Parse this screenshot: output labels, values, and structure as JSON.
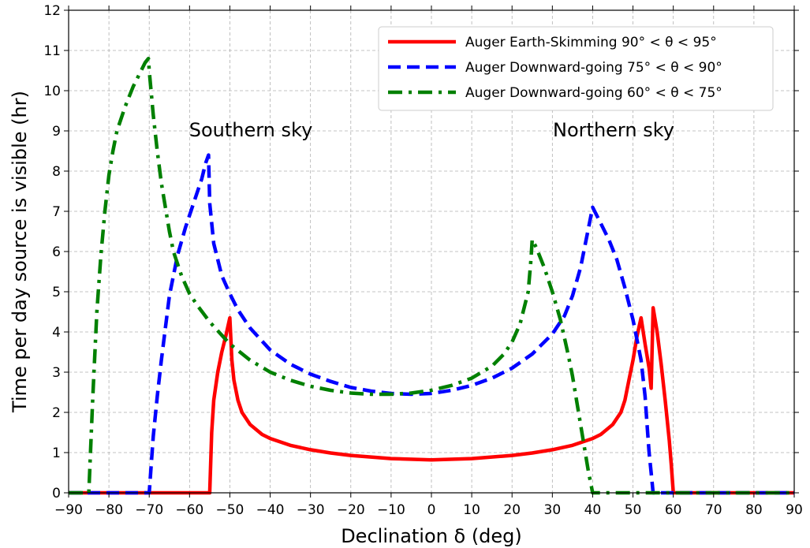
{
  "chart_data": {
    "type": "line",
    "title": "",
    "xlabel": "Declination δ (deg)",
    "ylabel": "Time per day source is visible (hr)",
    "xlim": [
      -90,
      90
    ],
    "ylim": [
      0,
      12
    ],
    "xticks": [
      -90,
      -80,
      -70,
      -60,
      -50,
      -40,
      -30,
      -20,
      -10,
      0,
      10,
      20,
      30,
      40,
      50,
      60,
      70,
      80,
      90
    ],
    "yticks": [
      0,
      1,
      2,
      3,
      4,
      5,
      6,
      7,
      8,
      9,
      10,
      11,
      12
    ],
    "grid": true,
    "legend_position": "top-right",
    "annotations": [
      {
        "text": "Southern sky",
        "x": -49,
        "y": 9.0
      },
      {
        "text": "Northern sky",
        "x": 41,
        "y": 9.0
      }
    ],
    "series": [
      {
        "name": "Auger Earth-Skimming 90° < θ < 95°",
        "color": "#ff0000",
        "style": "solid",
        "x": [
          -90,
          -55.1,
          -55,
          -54.5,
          -54,
          -53,
          -52,
          -51,
          -50,
          -49.5,
          -49,
          -48,
          -47,
          -45,
          -42,
          -40,
          -35,
          -30,
          -25,
          -20,
          -10,
          0,
          10,
          20,
          25,
          30,
          35,
          40,
          42,
          45,
          47,
          48,
          49,
          50,
          51,
          52,
          53,
          54,
          54.5,
          55,
          56,
          57,
          58,
          59,
          59.5,
          60,
          90
        ],
        "y": [
          0,
          0,
          0,
          1.5,
          2.3,
          3.0,
          3.5,
          3.9,
          4.35,
          3.3,
          2.8,
          2.3,
          2.0,
          1.7,
          1.45,
          1.35,
          1.18,
          1.07,
          0.99,
          0.93,
          0.85,
          0.82,
          0.85,
          0.93,
          0.99,
          1.07,
          1.18,
          1.35,
          1.45,
          1.7,
          2.0,
          2.3,
          2.8,
          3.3,
          3.9,
          4.35,
          3.7,
          3.1,
          2.6,
          4.6,
          4.0,
          3.2,
          2.3,
          1.3,
          0.7,
          0,
          0
        ]
      },
      {
        "name": "Auger Downward-going 75° < θ < 90°",
        "color": "#0000ff",
        "style": "dashed",
        "x": [
          -90,
          -70,
          -69,
          -68,
          -67,
          -66,
          -65,
          -63,
          -61,
          -59,
          -57,
          -56,
          -55.3,
          -55,
          -54,
          -52,
          -50,
          -48,
          -45,
          -40,
          -35,
          -30,
          -25,
          -20,
          -15,
          -10,
          -5,
          0,
          5,
          10,
          15,
          20,
          25,
          30,
          33,
          35,
          37,
          38,
          39,
          40,
          41,
          42,
          44,
          46,
          48,
          50,
          52,
          53,
          53.5,
          54,
          54.5,
          55,
          90
        ],
        "y": [
          0,
          0,
          1.4,
          2.4,
          3.3,
          4.1,
          4.9,
          5.9,
          6.6,
          7.2,
          7.8,
          8.2,
          8.4,
          7.2,
          6.2,
          5.4,
          4.95,
          4.55,
          4.1,
          3.55,
          3.2,
          2.95,
          2.77,
          2.62,
          2.53,
          2.47,
          2.45,
          2.47,
          2.55,
          2.67,
          2.85,
          3.1,
          3.45,
          3.95,
          4.4,
          4.9,
          5.6,
          6.1,
          6.6,
          7.1,
          6.9,
          6.7,
          6.3,
          5.8,
          5.1,
          4.3,
          3.3,
          2.4,
          1.7,
          1.0,
          0.5,
          0,
          0
        ]
      },
      {
        "name": "Auger Downward-going 60° < θ < 75°",
        "color": "#008000",
        "style": "dashdot",
        "x": [
          -90,
          -85,
          -84,
          -83,
          -82,
          -81,
          -80,
          -79,
          -78,
          -76,
          -74,
          -72,
          -71,
          -70.2,
          -70,
          -69,
          -68,
          -67,
          -66,
          -65,
          -64,
          -62,
          -60,
          -58,
          -55,
          -50,
          -45,
          -40,
          -35,
          -30,
          -25,
          -20,
          -15,
          -10,
          -5,
          0,
          5,
          10,
          15,
          18,
          20,
          22,
          24,
          24.7,
          25,
          26,
          28,
          30,
          32,
          34,
          35,
          36,
          37,
          38,
          39,
          39.5,
          40,
          90
        ],
        "y": [
          0,
          0,
          2.4,
          4.5,
          5.9,
          7.0,
          7.9,
          8.5,
          9.0,
          9.6,
          10.1,
          10.5,
          10.7,
          10.8,
          10.5,
          9.4,
          8.5,
          7.7,
          7.1,
          6.5,
          6.0,
          5.4,
          4.95,
          4.65,
          4.25,
          3.7,
          3.3,
          3.0,
          2.8,
          2.65,
          2.55,
          2.48,
          2.45,
          2.45,
          2.48,
          2.55,
          2.67,
          2.85,
          3.15,
          3.45,
          3.75,
          4.2,
          5.0,
          5.8,
          6.3,
          6.1,
          5.6,
          5.0,
          4.3,
          3.4,
          2.9,
          2.3,
          1.7,
          1.1,
          0.5,
          0.25,
          0,
          0
        ]
      }
    ]
  }
}
